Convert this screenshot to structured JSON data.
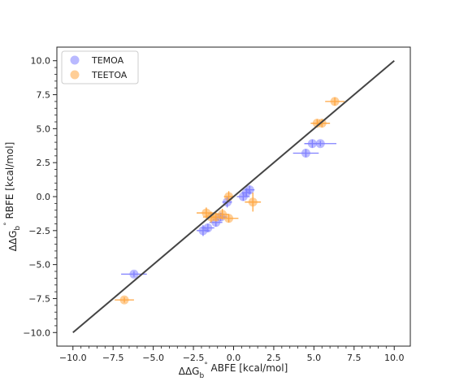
{
  "chart_data": {
    "type": "scatter",
    "xlabel": {
      "prefix": "ΔΔG",
      "sub": "b",
      "sup": "°",
      "suffix": " ABFE [kcal/mol]"
    },
    "ylabel": {
      "prefix": "ΔΔG",
      "sub": "b",
      "sup": "°",
      "suffix": " RBFE [kcal/mol]"
    },
    "xlim": [
      -11.0,
      11.0
    ],
    "ylim": [
      -11.0,
      11.0
    ],
    "xticks": [
      -10.0,
      -7.5,
      -5.0,
      -2.5,
      0.0,
      2.5,
      5.0,
      7.5,
      10.0
    ],
    "yticks": [
      -10.0,
      -7.5,
      -5.0,
      -2.5,
      0.0,
      2.5,
      5.0,
      7.5,
      10.0
    ],
    "xtick_labels": [
      "−10.0",
      "−7.5",
      "−5.0",
      "−2.5",
      "0.0",
      "2.5",
      "5.0",
      "7.5",
      "10.0"
    ],
    "ytick_labels": [
      "−10.0",
      "−7.5",
      "−5.0",
      "−2.5",
      "0.0",
      "2.5",
      "5.0",
      "7.5",
      "10.0"
    ],
    "grid": false,
    "legend_position": "top-left",
    "identity_line": {
      "from": [
        -10,
        -10
      ],
      "to": [
        10,
        10
      ],
      "color": "#444444"
    },
    "series": [
      {
        "name": "TEMOA",
        "color": "#8080ff",
        "points": [
          {
            "x": -6.2,
            "y": -5.7,
            "xerr": 0.8,
            "yerr": 0.2
          },
          {
            "x": -1.9,
            "y": -2.5,
            "xerr": 0.4,
            "yerr": 0.4
          },
          {
            "x": -1.6,
            "y": -2.3,
            "xerr": 0.4,
            "yerr": 0.3
          },
          {
            "x": -1.1,
            "y": -1.9,
            "xerr": 0.4,
            "yerr": 0.3
          },
          {
            "x": -0.8,
            "y": -1.5,
            "xerr": 0.4,
            "yerr": 0.3
          },
          {
            "x": -0.4,
            "y": -0.4,
            "xerr": 0.3,
            "yerr": 0.4
          },
          {
            "x": 0.6,
            "y": 0.0,
            "xerr": 0.4,
            "yerr": 0.3
          },
          {
            "x": 0.8,
            "y": 0.3,
            "xerr": 0.3,
            "yerr": 0.3
          },
          {
            "x": 1.0,
            "y": 0.5,
            "xerr": 0.3,
            "yerr": 0.3
          },
          {
            "x": 4.5,
            "y": 3.2,
            "xerr": 0.8,
            "yerr": 0.3
          },
          {
            "x": 4.9,
            "y": 3.9,
            "xerr": 0.5,
            "yerr": 0.3
          },
          {
            "x": 5.4,
            "y": 3.9,
            "xerr": 1.0,
            "yerr": 0.2
          }
        ]
      },
      {
        "name": "TEETOA",
        "color": "#ffa640",
        "points": [
          {
            "x": -6.8,
            "y": -7.6,
            "xerr": 0.6,
            "yerr": 0.2
          },
          {
            "x": -1.7,
            "y": -1.2,
            "xerr": 0.6,
            "yerr": 0.4
          },
          {
            "x": -1.4,
            "y": -1.5,
            "xerr": 0.5,
            "yerr": 0.4
          },
          {
            "x": -1.1,
            "y": -1.5,
            "xerr": 0.4,
            "yerr": 0.3
          },
          {
            "x": -0.7,
            "y": -1.3,
            "xerr": 0.4,
            "yerr": 0.4
          },
          {
            "x": -0.3,
            "y": -1.6,
            "xerr": 0.6,
            "yerr": 0.3
          },
          {
            "x": -0.3,
            "y": 0.0,
            "xerr": 0.3,
            "yerr": 0.4
          },
          {
            "x": 1.2,
            "y": -0.4,
            "xerr": 0.5,
            "yerr": 0.7
          },
          {
            "x": 5.2,
            "y": 5.4,
            "xerr": 0.4,
            "yerr": 0.3
          },
          {
            "x": 5.5,
            "y": 5.4,
            "xerr": 0.5,
            "yerr": 0.3
          },
          {
            "x": 6.3,
            "y": 7.0,
            "xerr": 0.6,
            "yerr": 0.3
          }
        ]
      }
    ]
  }
}
